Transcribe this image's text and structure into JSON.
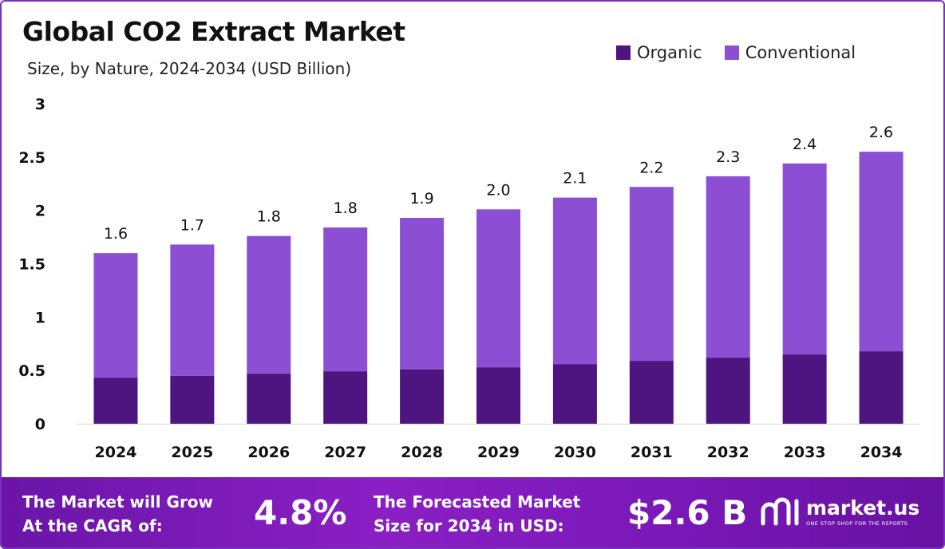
{
  "header": {
    "title": "Global CO2 Extract Market",
    "subtitle": "Size, by Nature, 2024-2034 (USD Billion)"
  },
  "colors": {
    "organic": "#4e1480",
    "conventional": "#8c4fd4",
    "footer_start": "#6a15a8",
    "footer_end": "#6612a2"
  },
  "chart_data": {
    "type": "bar",
    "stacked": true,
    "categories": [
      "2024",
      "2025",
      "2026",
      "2027",
      "2028",
      "2029",
      "2030",
      "2031",
      "2032",
      "2033",
      "2034"
    ],
    "series": [
      {
        "name": "Organic",
        "values": [
          0.43,
          0.45,
          0.47,
          0.49,
          0.51,
          0.53,
          0.56,
          0.59,
          0.62,
          0.65,
          0.68
        ]
      },
      {
        "name": "Conventional",
        "values": [
          1.17,
          1.23,
          1.29,
          1.35,
          1.42,
          1.48,
          1.56,
          1.63,
          1.7,
          1.79,
          1.87
        ]
      }
    ],
    "totals": [
      "1.6",
      "1.7",
      "1.8",
      "1.8",
      "1.9",
      "2.0",
      "2.1",
      "2.2",
      "2.3",
      "2.4",
      "2.6"
    ],
    "yticks": [
      "0",
      "0.5",
      "1",
      "1.5",
      "2",
      "2.5",
      "3"
    ],
    "ylim": [
      0,
      3
    ],
    "grid": false,
    "legend_position": "top-right"
  },
  "footer": {
    "cagr_text_line1": "The Market will Grow",
    "cagr_text_line2": "At the CAGR of:",
    "cagr_value": "4.8%",
    "forecast_text_line1": "The Forecasted Market",
    "forecast_text_line2": "Size for 2034 in USD:",
    "forecast_value": "$2.6 B",
    "logo_name": "market.us",
    "logo_tagline": "ONE STOP SHOP FOR THE REPORTS"
  }
}
